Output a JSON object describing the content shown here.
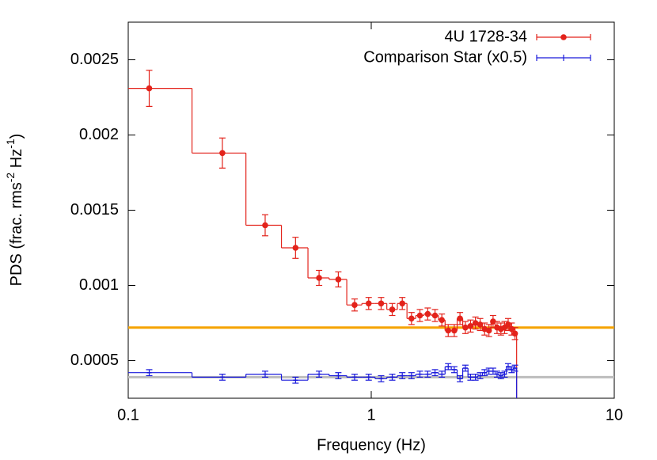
{
  "chart_data": {
    "type": "step-errorbar",
    "x_label": "Frequency (Hz)",
    "y_label": [
      "PDS (frac. rms",
      "-2",
      " Hz",
      "-1",
      ")"
    ],
    "x_log": true,
    "xlim": [
      0.1,
      10
    ],
    "xticks": [
      0.1,
      1,
      10
    ],
    "ylim": [
      0.00025,
      0.00275
    ],
    "yticks": [
      0.0005,
      0.001,
      0.0015,
      0.002,
      0.0025
    ],
    "legend": "top-right",
    "x": [
      0.122,
      0.244,
      0.366,
      0.488,
      0.61,
      0.732,
      0.854,
      0.976,
      1.098,
      1.22,
      1.342,
      1.464,
      1.586,
      1.708,
      1.83,
      1.952,
      2.074,
      2.196,
      2.318,
      2.44,
      2.562,
      2.684,
      2.806,
      2.928,
      3.05,
      3.172,
      3.294,
      3.416,
      3.538,
      3.66,
      3.782,
      3.904
    ],
    "series": [
      {
        "name": "4U 1728-34",
        "color": "#e3231b",
        "marker": "circle",
        "values": [
          0.00231,
          0.00188,
          0.0014,
          0.00125,
          0.00105,
          0.00104,
          0.00087,
          0.00088,
          0.00088,
          0.00084,
          0.00088,
          0.00078,
          0.0008,
          0.00081,
          0.0008,
          0.00077,
          0.0007,
          0.0007,
          0.00078,
          0.00072,
          0.00073,
          0.00075,
          0.00074,
          0.00071,
          0.0007,
          0.00076,
          0.00072,
          0.00071,
          0.00072,
          0.00074,
          0.00071,
          0.00068
        ],
        "errors": [
          0.00012,
          0.0001,
          7e-05,
          7e-05,
          5e-05,
          5e-05,
          4e-05,
          4e-05,
          4e-05,
          4e-05,
          4e-05,
          4e-05,
          4e-05,
          4e-05,
          4e-05,
          4e-05,
          4e-05,
          4e-05,
          4e-05,
          4e-05,
          4e-05,
          4e-05,
          4e-05,
          4e-05,
          4e-05,
          4e-05,
          4e-05,
          4e-05,
          4e-05,
          4e-05,
          4e-05,
          4e-05
        ]
      },
      {
        "name": "Comparison Star (x0.5)",
        "color": "#1a1adb",
        "marker": "tick",
        "values": [
          0.00042,
          0.00039,
          0.00041,
          0.00037,
          0.00041,
          0.0004,
          0.00039,
          0.00039,
          0.00038,
          0.00039,
          0.0004,
          0.0004,
          0.00041,
          0.00041,
          0.00042,
          0.00041,
          0.00046,
          0.00044,
          0.00038,
          0.00045,
          0.00039,
          0.00039,
          0.0004,
          0.00042,
          0.00043,
          0.00043,
          0.00041,
          0.0004,
          0.00041,
          0.00046,
          0.00044,
          0.00045
        ],
        "errors": [
          2e-05,
          2e-05,
          2e-05,
          2e-05,
          2e-05,
          2e-05,
          2e-05,
          2e-05,
          2e-05,
          2e-05,
          2e-05,
          2e-05,
          2e-05,
          2e-05,
          2e-05,
          2e-05,
          2e-05,
          2e-05,
          2e-05,
          2e-05,
          2e-05,
          2e-05,
          2e-05,
          2e-05,
          2e-05,
          2e-05,
          2e-05,
          2e-05,
          2e-05,
          2e-05,
          2e-05,
          2e-05
        ]
      }
    ],
    "hlines": [
      {
        "value": 0.00072,
        "color": "#f5a300"
      },
      {
        "value": 0.00039,
        "color": "#bdbdbd"
      }
    ]
  }
}
